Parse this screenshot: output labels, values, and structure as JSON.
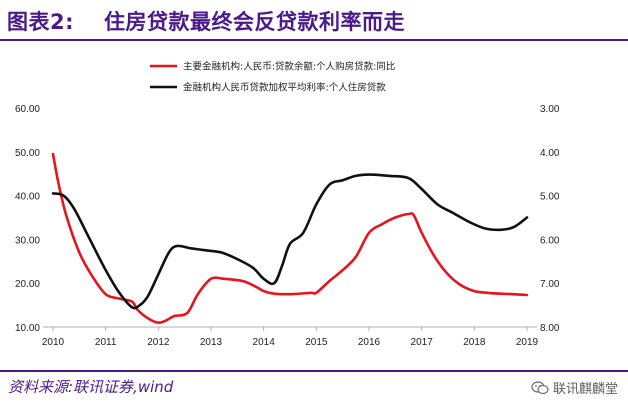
{
  "header": {
    "figure_number": "图表2:",
    "title": "住房贷款最终会反贷款利率而走"
  },
  "footer": {
    "source": "资料来源:联讯证券,wind",
    "watermark_text": "联讯麒麟堂",
    "watermark_icon": "wechat-icon"
  },
  "chart_data": {
    "type": "line",
    "title": "",
    "xlabel": "",
    "ylabel": "",
    "x_ticks": [
      "2010",
      "2011",
      "2012",
      "2013",
      "2014",
      "2015",
      "2016",
      "2017",
      "2018",
      "2019"
    ],
    "xlim": [
      2010,
      2019
    ],
    "y_left": {
      "ticks": [
        "10.00",
        "20.00",
        "30.00",
        "40.00",
        "50.00",
        "60.00"
      ],
      "ylim": [
        10,
        60
      ]
    },
    "y_right": {
      "ticks": [
        "3.00",
        "4.00",
        "5.00",
        "6.00",
        "7.00",
        "8.00"
      ],
      "ylim": [
        3,
        8
      ],
      "inverted": true
    },
    "legend_position": "top-center",
    "grid": false,
    "series": [
      {
        "name": "主要金融机构:人民币:贷款余额:个人购房贷款:同比",
        "axis": "left",
        "color": "#e8141b",
        "x": [
          2010.0,
          2010.1,
          2010.25,
          2010.5,
          2010.75,
          2011.0,
          2011.25,
          2011.5,
          2011.6,
          2011.8,
          2012.0,
          2012.15,
          2012.3,
          2012.55,
          2012.75,
          2013.0,
          2013.25,
          2013.6,
          2013.85,
          2014.0,
          2014.2,
          2014.5,
          2014.9,
          2015.0,
          2015.25,
          2015.5,
          2015.75,
          2016.0,
          2016.25,
          2016.5,
          2016.75,
          2016.85,
          2017.0,
          2017.25,
          2017.5,
          2017.75,
          2018.0,
          2018.25,
          2018.5,
          2018.75,
          2019.0
        ],
        "values": [
          49.5,
          43.0,
          35.5,
          27.0,
          21.5,
          17.5,
          16.5,
          15.8,
          14.0,
          12.0,
          11.0,
          11.5,
          12.5,
          13.2,
          17.5,
          21.0,
          21.0,
          20.5,
          19.2,
          18.2,
          17.6,
          17.5,
          17.8,
          17.8,
          20.5,
          23.0,
          26.0,
          31.5,
          33.5,
          35.0,
          35.8,
          35.5,
          31.5,
          26.0,
          22.0,
          19.5,
          18.2,
          17.8,
          17.6,
          17.5,
          17.3
        ]
      },
      {
        "name": "金融机构人民币贷款加权平均利率:个人住房贷款",
        "axis": "right",
        "color": "#111111",
        "x": [
          2010.0,
          2010.2,
          2010.4,
          2010.7,
          2011.0,
          2011.25,
          2011.5,
          2011.65,
          2011.8,
          2012.0,
          2012.2,
          2012.35,
          2012.6,
          2012.9,
          2013.2,
          2013.5,
          2013.8,
          2014.0,
          2014.2,
          2014.35,
          2014.5,
          2014.75,
          2015.0,
          2015.25,
          2015.5,
          2015.75,
          2016.0,
          2016.4,
          2016.75,
          2017.0,
          2017.3,
          2017.6,
          2017.9,
          2018.2,
          2018.5,
          2018.75,
          2019.0
        ],
        "values": [
          4.95,
          5.0,
          5.3,
          6.0,
          6.7,
          7.2,
          7.55,
          7.5,
          7.3,
          6.8,
          6.3,
          6.15,
          6.2,
          6.25,
          6.3,
          6.45,
          6.65,
          6.9,
          7.0,
          6.6,
          6.1,
          5.85,
          5.2,
          4.75,
          4.65,
          4.55,
          4.52,
          4.55,
          4.6,
          4.85,
          5.2,
          5.4,
          5.6,
          5.75,
          5.78,
          5.72,
          5.5
        ]
      }
    ]
  }
}
